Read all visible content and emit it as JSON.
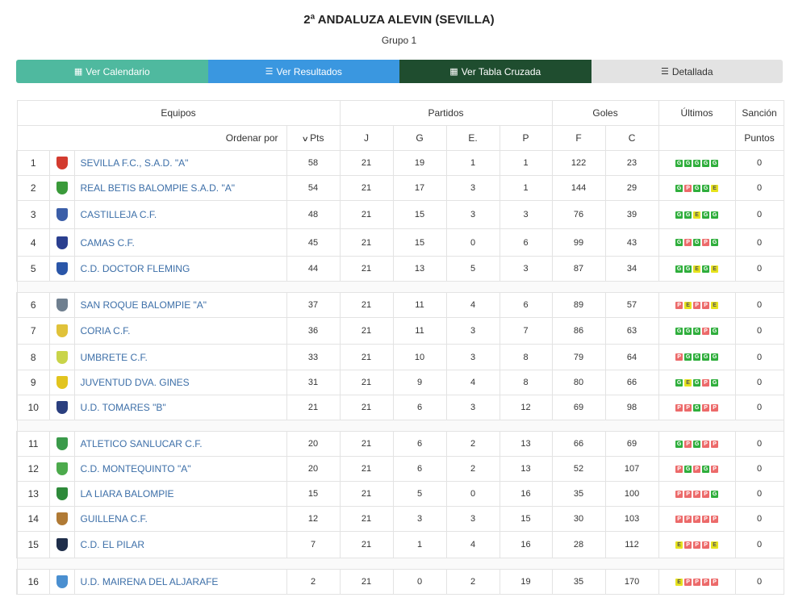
{
  "header": {
    "title": "2ª ANDALUZA ALEVIN (SEVILLA)",
    "subtitle": "Grupo 1"
  },
  "buttons": [
    {
      "label": "Ver Calendario",
      "icon": "calendar-icon",
      "glyph": "▦",
      "bg": "#4fb99f"
    },
    {
      "label": "Ver Resultados",
      "icon": "list-icon",
      "glyph": "☰",
      "bg": "#3a97e0"
    },
    {
      "label": "Ver Tabla Cruzada",
      "icon": "grid-table-icon",
      "glyph": "▦",
      "bg": "#1f4d2f"
    },
    {
      "label": "Detallada",
      "icon": "list-detail-icon",
      "glyph": "☰",
      "bg": "#e3e3e3"
    }
  ],
  "table": {
    "group_headers": {
      "equipos": "Equipos",
      "partidos": "Partidos",
      "goles": "Goles",
      "ultimos": "Últimos",
      "sancion": "Sanción"
    },
    "sub_headers": {
      "ordenar": "Ordenar por",
      "pts": "Pts",
      "j": "J",
      "g": "G",
      "e": "E.",
      "p": "P",
      "f": "F",
      "c": "C",
      "puntos": "Puntos"
    },
    "rows": [
      {
        "pos": "1",
        "team": "SEVILLA F.C., S.A.D. \"A\"",
        "crest": "sevilla-crest-icon",
        "crest_color": "#d33b2f",
        "pts": "58",
        "j": "21",
        "g": "19",
        "e": "1",
        "p": "1",
        "f": "122",
        "c": "23",
        "last": [
          "G",
          "G",
          "G",
          "G",
          "G"
        ],
        "sancion": "0"
      },
      {
        "pos": "2",
        "team": "REAL BETIS BALOMPIE S.A.D. \"A\"",
        "crest": "betis-crest-icon",
        "crest_color": "#3a9a3a",
        "pts": "54",
        "j": "21",
        "g": "17",
        "e": "3",
        "p": "1",
        "f": "144",
        "c": "29",
        "last": [
          "G",
          "P",
          "G",
          "G",
          "E"
        ],
        "sancion": "0"
      },
      {
        "pos": "3",
        "team": "CASTILLEJA C.F.",
        "crest": "castilleja-crest-icon",
        "crest_color": "#3b5ea8",
        "pts": "48",
        "j": "21",
        "g": "15",
        "e": "3",
        "p": "3",
        "f": "76",
        "c": "39",
        "last": [
          "G",
          "G",
          "E",
          "G",
          "G"
        ],
        "sancion": "0"
      },
      {
        "pos": "4",
        "team": "CAMAS C.F.",
        "crest": "camas-crest-icon",
        "crest_color": "#2a3f8f",
        "pts": "45",
        "j": "21",
        "g": "15",
        "e": "0",
        "p": "6",
        "f": "99",
        "c": "43",
        "last": [
          "G",
          "P",
          "G",
          "P",
          "G"
        ],
        "sancion": "0"
      },
      {
        "pos": "5",
        "team": "C.D. DOCTOR FLEMING",
        "crest": "fleming-crest-icon",
        "crest_color": "#2a56a8",
        "pts": "44",
        "j": "21",
        "g": "13",
        "e": "5",
        "p": "3",
        "f": "87",
        "c": "34",
        "last": [
          "G",
          "G",
          "E",
          "G",
          "E"
        ],
        "sancion": "0"
      },
      {
        "pos": "6",
        "team": "SAN ROQUE BALOMPIE \"A\"",
        "crest": "sanroque-crest-icon",
        "crest_color": "#6f7f8f",
        "pts": "37",
        "j": "21",
        "g": "11",
        "e": "4",
        "p": "6",
        "f": "89",
        "c": "57",
        "last": [
          "P",
          "E",
          "P",
          "P",
          "E"
        ],
        "sancion": "0"
      },
      {
        "pos": "7",
        "team": "CORIA C.F.",
        "crest": "coria-crest-icon",
        "crest_color": "#e0c23a",
        "pts": "36",
        "j": "21",
        "g": "11",
        "e": "3",
        "p": "7",
        "f": "86",
        "c": "63",
        "last": [
          "G",
          "G",
          "G",
          "P",
          "G"
        ],
        "sancion": "0"
      },
      {
        "pos": "8",
        "team": "UMBRETE C.F.",
        "crest": "umbrete-crest-icon",
        "crest_color": "#c9d44a",
        "pts": "33",
        "j": "21",
        "g": "10",
        "e": "3",
        "p": "8",
        "f": "79",
        "c": "64",
        "last": [
          "P",
          "G",
          "G",
          "G",
          "G"
        ],
        "sancion": "0"
      },
      {
        "pos": "9",
        "team": "JUVENTUD DVA. GINES",
        "crest": "gines-crest-icon",
        "crest_color": "#e2c41e",
        "pts": "31",
        "j": "21",
        "g": "9",
        "e": "4",
        "p": "8",
        "f": "80",
        "c": "66",
        "last": [
          "G",
          "E",
          "G",
          "P",
          "G"
        ],
        "sancion": "0"
      },
      {
        "pos": "10",
        "team": "U.D. TOMARES \"B\"",
        "crest": "tomares-crest-icon",
        "crest_color": "#2a3f7f",
        "pts": "21",
        "j": "21",
        "g": "6",
        "e": "3",
        "p": "12",
        "f": "69",
        "c": "98",
        "last": [
          "P",
          "P",
          "G",
          "P",
          "P"
        ],
        "sancion": "0"
      },
      {
        "pos": "11",
        "team": "ATLETICO SANLUCAR C.F.",
        "crest": "sanlucar-crest-icon",
        "crest_color": "#3a9a4a",
        "pts": "20",
        "j": "21",
        "g": "6",
        "e": "2",
        "p": "13",
        "f": "66",
        "c": "69",
        "last": [
          "G",
          "P",
          "G",
          "P",
          "P"
        ],
        "sancion": "0"
      },
      {
        "pos": "12",
        "team": "C.D. MONTEQUINTO \"A\"",
        "crest": "montequinto-crest-icon",
        "crest_color": "#4caa4c",
        "pts": "20",
        "j": "21",
        "g": "6",
        "e": "2",
        "p": "13",
        "f": "52",
        "c": "107",
        "last": [
          "P",
          "G",
          "P",
          "G",
          "P"
        ],
        "sancion": "0"
      },
      {
        "pos": "13",
        "team": "LA LIARA BALOMPIE",
        "crest": "liara-crest-icon",
        "crest_color": "#2e8a3a",
        "pts": "15",
        "j": "21",
        "g": "5",
        "e": "0",
        "p": "16",
        "f": "35",
        "c": "100",
        "last": [
          "P",
          "P",
          "P",
          "P",
          "G"
        ],
        "sancion": "0"
      },
      {
        "pos": "14",
        "team": "GUILLENA C.F.",
        "crest": "guillena-crest-icon",
        "crest_color": "#b07a35",
        "pts": "12",
        "j": "21",
        "g": "3",
        "e": "3",
        "p": "15",
        "f": "30",
        "c": "103",
        "last": [
          "P",
          "P",
          "P",
          "P",
          "P"
        ],
        "sancion": "0"
      },
      {
        "pos": "15",
        "team": "C.D. EL PILAR",
        "crest": "pilar-crest-icon",
        "crest_color": "#1f2e4a",
        "pts": "7",
        "j": "21",
        "g": "1",
        "e": "4",
        "p": "16",
        "f": "28",
        "c": "112",
        "last": [
          "E",
          "P",
          "P",
          "P",
          "E"
        ],
        "sancion": "0"
      },
      {
        "pos": "16",
        "team": "U.D. MAIRENA DEL ALJARAFE",
        "crest": "mairena-crest-icon",
        "crest_color": "#4a8fd0",
        "pts": "2",
        "j": "21",
        "g": "0",
        "e": "2",
        "p": "19",
        "f": "35",
        "c": "170",
        "last": [
          "E",
          "P",
          "P",
          "P",
          "P"
        ],
        "sancion": "0"
      }
    ],
    "separators_after": [
      5,
      10,
      15
    ]
  }
}
